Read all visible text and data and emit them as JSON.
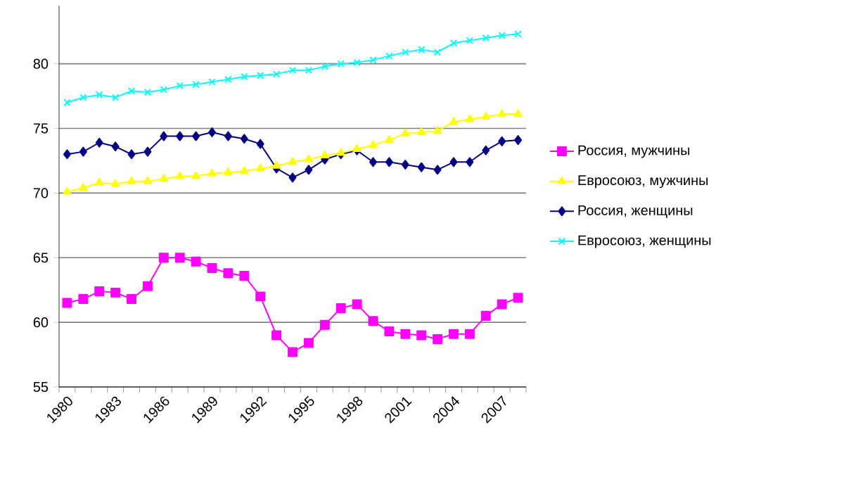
{
  "chart_data": {
    "type": "line",
    "categories": [
      "1980",
      null,
      null,
      "1983",
      null,
      null,
      "1986",
      null,
      null,
      "1989",
      null,
      null,
      "1992",
      null,
      null,
      "1995",
      null,
      null,
      "1998",
      null,
      null,
      "2001",
      null,
      null,
      "2004",
      null,
      null,
      "2007",
      null
    ],
    "series": [
      {
        "name": "Россия, мужчины",
        "color": "#ff00ff",
        "marker": "square",
        "values": [
          61.5,
          61.8,
          62.4,
          62.3,
          61.8,
          62.8,
          65.0,
          65.0,
          64.7,
          64.2,
          63.8,
          63.6,
          62.0,
          59.0,
          57.7,
          58.4,
          59.8,
          61.1,
          61.4,
          60.1,
          59.3,
          59.1,
          59.0,
          58.7,
          59.1,
          59.1,
          60.5,
          61.4,
          61.9
        ]
      },
      {
        "name": "Евросоюз, мужчины",
        "color": "#ffff00",
        "marker": "triangle",
        "values": [
          70.1,
          70.4,
          70.8,
          70.7,
          70.9,
          70.9,
          71.1,
          71.3,
          71.3,
          71.5,
          71.6,
          71.7,
          71.9,
          72.1,
          72.4,
          72.6,
          72.9,
          73.1,
          73.4,
          73.7,
          74.1,
          74.6,
          74.7,
          74.8,
          75.5,
          75.7,
          75.9,
          76.1,
          76.1
        ]
      },
      {
        "name": "Россия, женщины",
        "color": "#000080",
        "marker": "diamond",
        "values": [
          73.0,
          73.2,
          73.9,
          73.6,
          73.0,
          73.2,
          74.4,
          74.4,
          74.4,
          74.7,
          74.4,
          74.2,
          73.8,
          71.9,
          71.2,
          71.8,
          72.6,
          73.0,
          73.3,
          72.4,
          72.4,
          72.2,
          72.0,
          71.8,
          72.4,
          72.4,
          73.3,
          74.0,
          74.1
        ]
      },
      {
        "name": "Евросоюз, женщины",
        "color": "#00ffff",
        "marker": "cross",
        "values": [
          77.0,
          77.4,
          77.6,
          77.4,
          77.9,
          77.8,
          78.0,
          78.3,
          78.4,
          78.6,
          78.8,
          79.0,
          79.1,
          79.2,
          79.5,
          79.5,
          79.8,
          80.0,
          80.1,
          80.3,
          80.6,
          80.9,
          81.1,
          80.9,
          81.6,
          81.8,
          82.0,
          82.2,
          82.3
        ]
      }
    ],
    "ylim": [
      55,
      84.5
    ],
    "yticks": [
      55,
      60,
      65,
      70,
      75,
      80
    ],
    "grid": "y",
    "legend": "right",
    "line_style": "solid"
  }
}
